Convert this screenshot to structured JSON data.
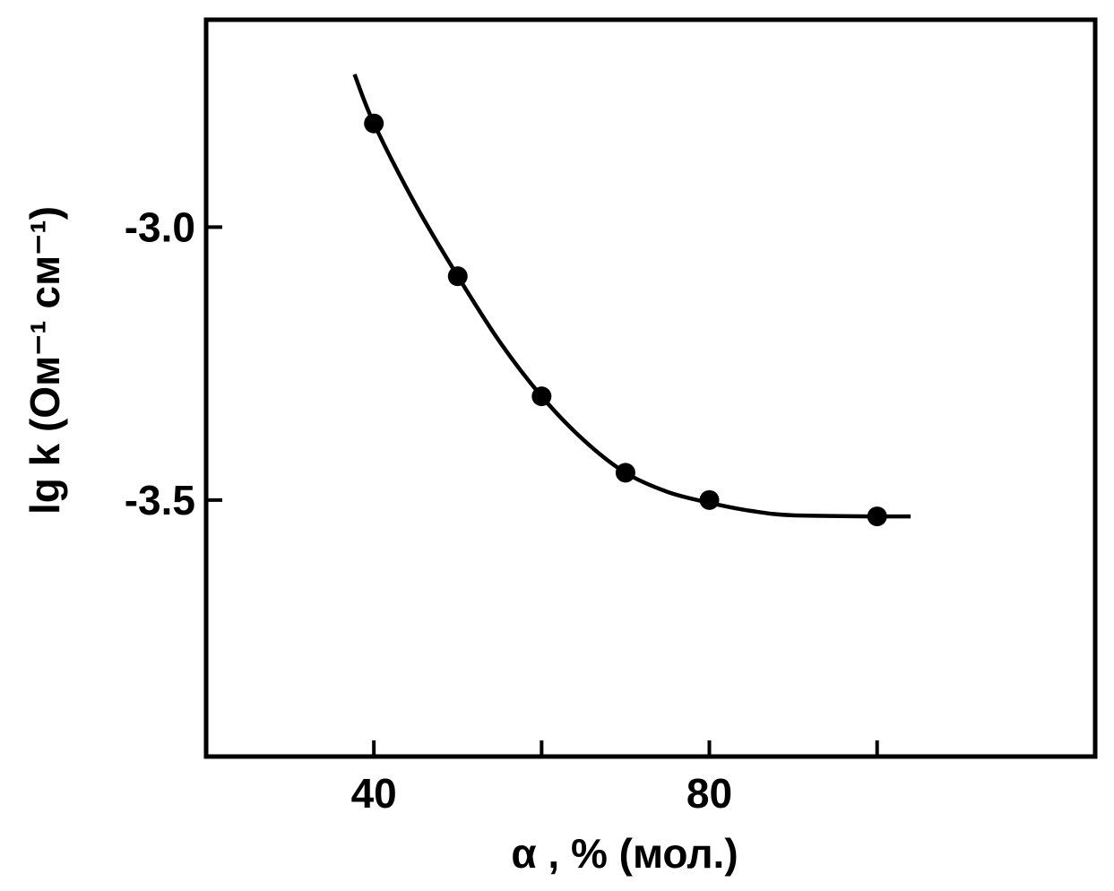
{
  "chart_data": {
    "type": "line",
    "title": "",
    "xlabel": "α , % (мол.)",
    "ylabel": "lg k (Ом⁻¹ см⁻¹)",
    "xlim": [
      20,
      126
    ],
    "ylim": [
      -3.97,
      -2.62
    ],
    "grid": false,
    "x_ticks": [
      {
        "value": 40,
        "label": "40"
      },
      {
        "value": 60,
        "label": ""
      },
      {
        "value": 80,
        "label": "80"
      },
      {
        "value": 100,
        "label": ""
      }
    ],
    "y_ticks": [
      {
        "value": -3.0,
        "label": "-3.0"
      },
      {
        "value": -3.5,
        "label": "-3.5"
      }
    ],
    "series": [
      {
        "markers": true,
        "points": [
          {
            "x": 40,
            "y": -2.81
          },
          {
            "x": 50,
            "y": -3.09
          },
          {
            "x": 60,
            "y": -3.31
          },
          {
            "x": 70,
            "y": -3.45
          },
          {
            "x": 80,
            "y": -3.5
          },
          {
            "x": 100,
            "y": -3.53
          }
        ]
      }
    ],
    "curve": [
      {
        "x": 37.7,
        "y": -2.72
      },
      {
        "x": 40,
        "y": -2.81
      },
      {
        "x": 45,
        "y": -2.96
      },
      {
        "x": 50,
        "y": -3.09
      },
      {
        "x": 55,
        "y": -3.21
      },
      {
        "x": 60,
        "y": -3.31
      },
      {
        "x": 65,
        "y": -3.39
      },
      {
        "x": 70,
        "y": -3.45
      },
      {
        "x": 75,
        "y": -3.485
      },
      {
        "x": 80,
        "y": -3.505
      },
      {
        "x": 85,
        "y": -3.52
      },
      {
        "x": 90,
        "y": -3.528
      },
      {
        "x": 100,
        "y": -3.53
      },
      {
        "x": 104,
        "y": -3.53
      }
    ]
  }
}
